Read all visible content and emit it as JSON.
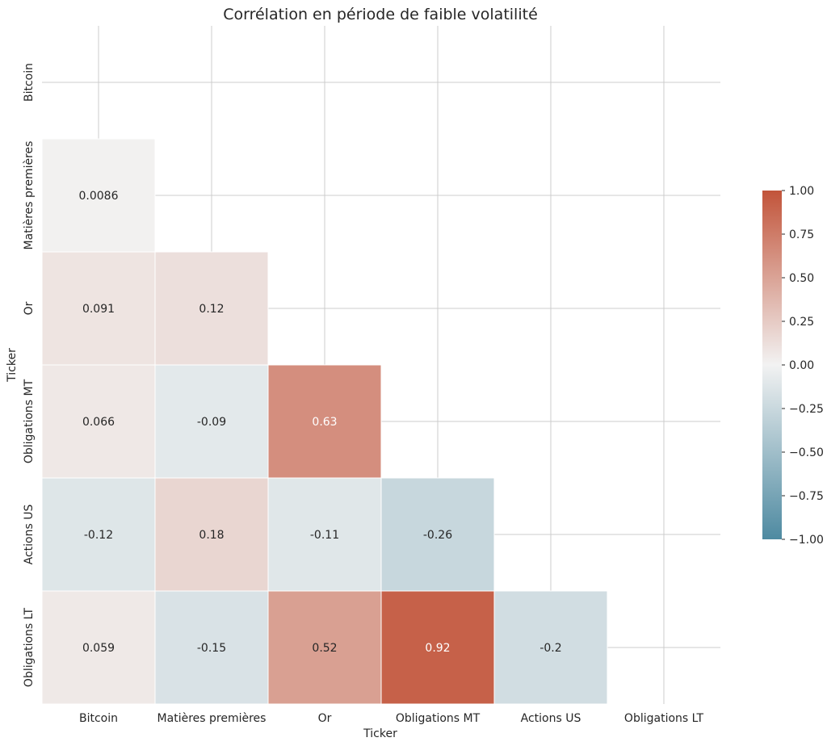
{
  "chart_data": {
    "type": "heatmap",
    "title": "Corrélation en période de faible volatilité",
    "xlabel": "Ticker",
    "ylabel": "Ticker",
    "x_categories": [
      "Bitcoin",
      "Matières premières",
      "Or",
      "Obligations MT",
      "Actions US",
      "Obligations LT"
    ],
    "y_categories": [
      "Bitcoin",
      "Matières premières",
      "Or",
      "Obligations MT",
      "Actions US",
      "Obligations LT"
    ],
    "mask": "upper-triangle-including-diagonal",
    "matrix": [
      [
        null,
        null,
        null,
        null,
        null,
        null
      ],
      [
        "0.0086",
        null,
        null,
        null,
        null,
        null
      ],
      [
        "0.091",
        "0.12",
        null,
        null,
        null,
        null
      ],
      [
        "0.066",
        "-0.09",
        "0.63",
        null,
        null,
        null
      ],
      [
        "-0.12",
        "0.18",
        "-0.11",
        "-0.26",
        null,
        null
      ],
      [
        "0.059",
        "-0.15",
        "0.52",
        "0.92",
        "-0.2",
        null
      ]
    ],
    "vmin": -1.0,
    "vmax": 1.0,
    "colormap": {
      "low": "#4e8aa1",
      "mid": "#f2f2f2",
      "high": "#c2543a"
    },
    "colorbar": {
      "ticks": [
        "1.00",
        "0.75",
        "0.50",
        "0.25",
        "0.00",
        "−0.25",
        "−0.50",
        "−0.75",
        "−1.00"
      ],
      "tick_values": [
        1.0,
        0.75,
        0.5,
        0.25,
        0.0,
        -0.25,
        -0.5,
        -0.75,
        -1.0
      ],
      "placement": "right"
    },
    "grid": true
  }
}
